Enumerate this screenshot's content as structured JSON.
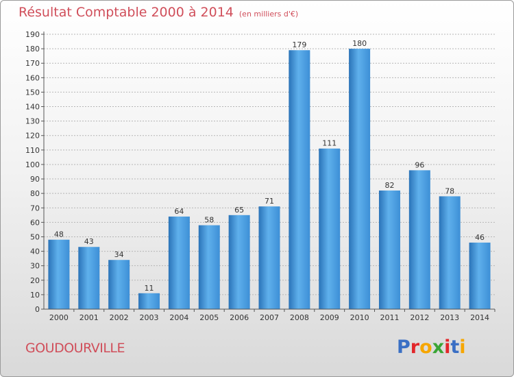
{
  "chart_data": {
    "type": "bar",
    "title": "Résultat Comptable 2000 à 2014",
    "subtitle": "(en milliers d'€)",
    "categories": [
      "2000",
      "2001",
      "2002",
      "2003",
      "2004",
      "2005",
      "2006",
      "2007",
      "2008",
      "2009",
      "2010",
      "2011",
      "2012",
      "2013",
      "2014"
    ],
    "values": [
      48,
      43,
      34,
      11,
      64,
      58,
      65,
      71,
      179,
      111,
      180,
      82,
      96,
      78,
      46
    ],
    "ylim": [
      0,
      190
    ],
    "yticks": [
      0,
      10,
      20,
      30,
      40,
      50,
      60,
      70,
      80,
      90,
      100,
      110,
      120,
      130,
      140,
      150,
      160,
      170,
      180,
      190
    ],
    "grid": true,
    "bar_color": "#3d8fd6",
    "bar_color_light": "#5fb0ec",
    "bar_color_dark": "#2a73b8"
  },
  "footer": {
    "commune": "GOUDOURVILLE",
    "logo": [
      "P",
      "r",
      "o",
      "x",
      "i",
      "t",
      "i"
    ],
    "logo_colors": [
      "#3a6fc4",
      "#e2262a",
      "#f6a600",
      "#3aa535",
      "#e2262a",
      "#3a6fc4",
      "#f6a600"
    ]
  },
  "colors": {
    "title": "#d04e5a",
    "grid": "#b5b5b5"
  }
}
